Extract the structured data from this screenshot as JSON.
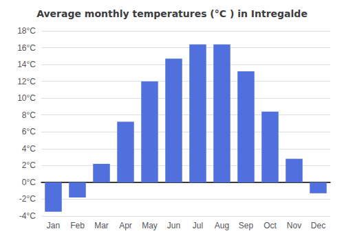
{
  "chart_data": {
    "type": "bar",
    "title": "Average monthly temperatures (°C ) in Intregalde",
    "categories": [
      "Jan",
      "Feb",
      "Mar",
      "Apr",
      "May",
      "Jun",
      "Jul",
      "Aug",
      "Sep",
      "Oct",
      "Nov",
      "Dec"
    ],
    "values": [
      -3.5,
      -1.8,
      2.2,
      7.2,
      12.0,
      14.7,
      16.4,
      16.4,
      13.2,
      8.4,
      2.8,
      -1.3
    ],
    "ylim": [
      -4,
      18
    ],
    "yticks": [
      {
        "value": -4,
        "label": "-4°C"
      },
      {
        "value": -2,
        "label": "-2°C"
      },
      {
        "value": 0,
        "label": "0°C"
      },
      {
        "value": 2,
        "label": "2°C"
      },
      {
        "value": 4,
        "label": "4°C"
      },
      {
        "value": 6,
        "label": "6°C"
      },
      {
        "value": 8,
        "label": "8°C"
      },
      {
        "value": 10,
        "label": "10°C"
      },
      {
        "value": 12,
        "label": "12°C"
      },
      {
        "value": 14,
        "label": "14°C"
      },
      {
        "value": 16,
        "label": "16°C"
      },
      {
        "value": 18,
        "label": "18°C"
      }
    ],
    "grid": true
  }
}
